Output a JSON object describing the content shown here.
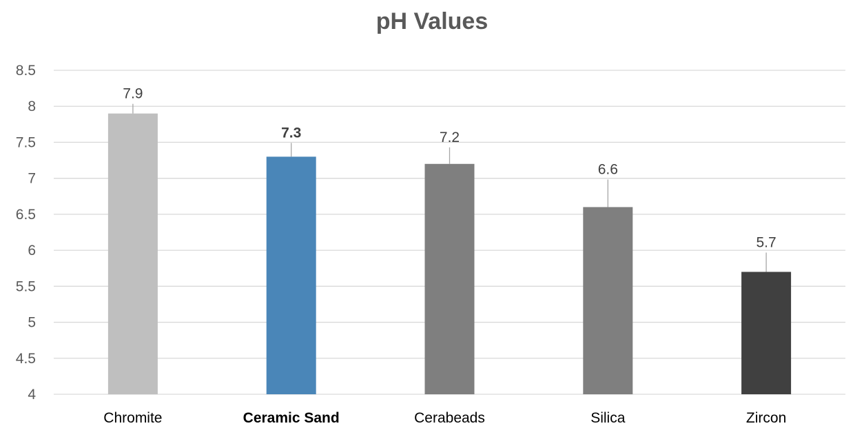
{
  "chart_data": {
    "type": "bar",
    "title": "pH Values",
    "xlabel": "",
    "ylabel": "",
    "categories": [
      "Chromite",
      "Ceramic Sand",
      "Cerabeads",
      "Silica",
      "Zircon"
    ],
    "values": [
      7.9,
      7.3,
      7.2,
      6.6,
      5.7
    ],
    "data_labels": [
      "7.9",
      "7.3",
      "7.2",
      "6.6",
      "5.7"
    ],
    "bar_colors": [
      "#bfbfbf",
      "#4a86b8",
      "#7f7f7f",
      "#7f7f7f",
      "#404040"
    ],
    "highlighted_category": "Ceramic Sand",
    "ylim": [
      4,
      8.5
    ],
    "y_ticks": [
      4,
      4.5,
      5,
      5.5,
      6,
      6.5,
      7,
      7.5,
      8,
      8.5
    ],
    "y_tick_labels": [
      "4",
      "4.5",
      "5",
      "5.5",
      "6",
      "6.5",
      "7",
      "7.5",
      "8",
      "8.5"
    ],
    "grid": true,
    "legend": "none"
  }
}
